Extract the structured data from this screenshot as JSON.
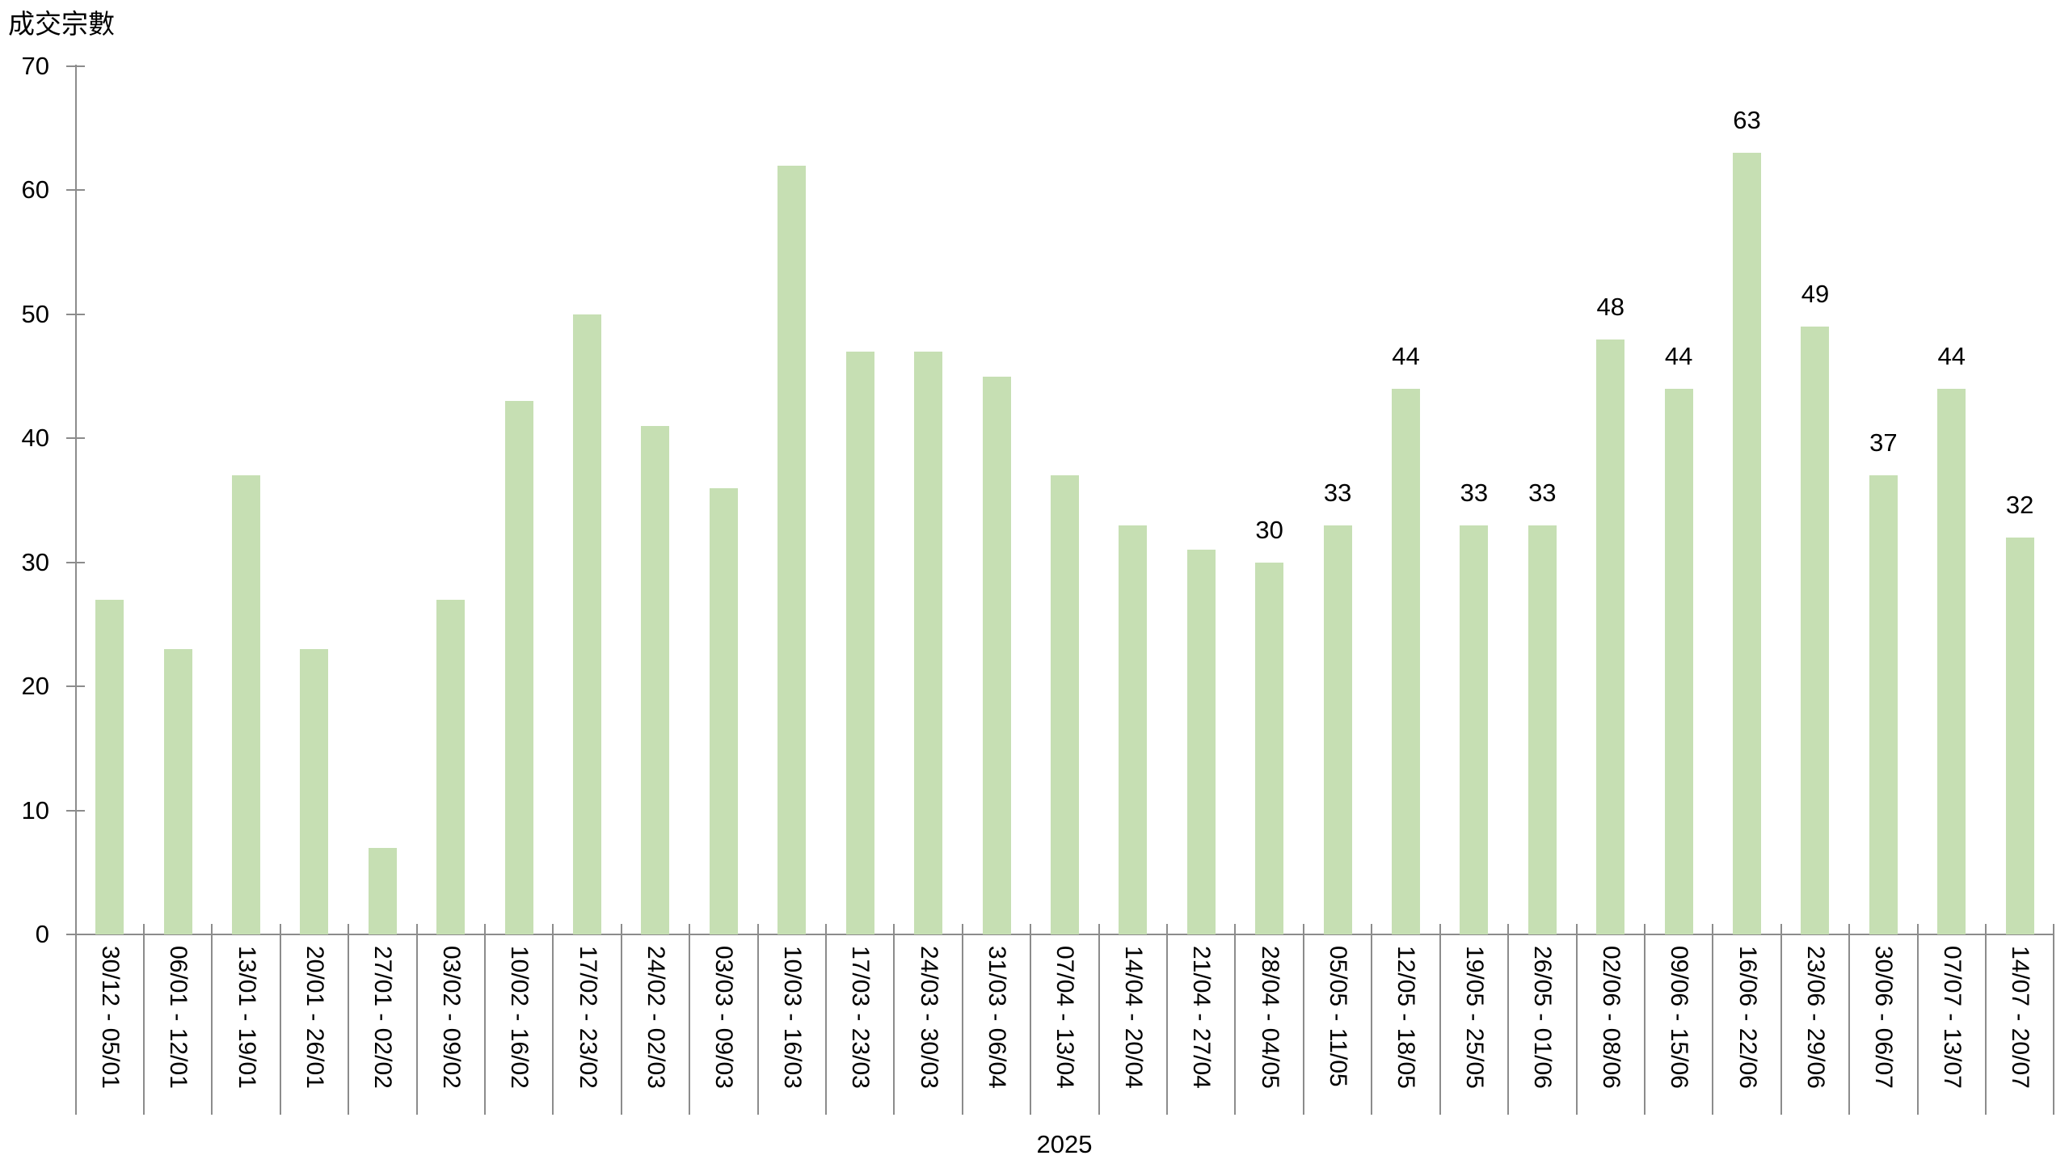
{
  "chart": {
    "title": "成交宗數",
    "year_label": "2025",
    "bar_color": "#c6dfb3",
    "axis_color": "#8c8c8c",
    "text_color": "#000000",
    "background_color": "#ffffff"
  },
  "chart_data": {
    "type": "bar",
    "title": "成交宗數",
    "ylabel": "成交宗數",
    "xlabel": "2025",
    "ylim": [
      0,
      70
    ],
    "yticks": [
      0,
      10,
      20,
      30,
      40,
      50,
      60,
      70
    ],
    "grid": false,
    "legend": false,
    "bar_color": "#c6dfb3",
    "categories": [
      "30/12 - 05/01",
      "06/01 - 12/01",
      "13/01 - 19/01",
      "20/01 - 26/01",
      "27/01 - 02/02",
      "03/02 - 09/02",
      "10/02 - 16/02",
      "17/02 - 23/02",
      "24/02 - 02/03",
      "03/03 - 09/03",
      "10/03 - 16/03",
      "17/03 - 23/03",
      "24/03 - 30/03",
      "31/03 - 06/04",
      "07/04 - 13/04",
      "14/04 - 20/04",
      "21/04 - 27/04",
      "28/04 - 04/05",
      "05/05 - 11/05",
      "12/05 - 18/05",
      "19/05 - 25/05",
      "26/05 - 01/06",
      "02/06 - 08/06",
      "09/06 - 15/06",
      "16/06 - 22/06",
      "23/06 - 29/06",
      "30/06 - 06/07",
      "07/07 - 13/07",
      "14/07 - 20/07"
    ],
    "values": [
      27,
      23,
      37,
      23,
      7,
      27,
      43,
      50,
      41,
      36,
      62,
      47,
      47,
      45,
      37,
      33,
      31,
      30,
      33,
      44,
      33,
      33,
      48,
      44,
      63,
      49,
      37,
      44,
      32
    ],
    "data_labels": [
      "",
      "",
      "",
      "",
      "",
      "",
      "",
      "",
      "",
      "",
      "",
      "",
      "",
      "",
      "",
      "",
      "",
      "30",
      "33",
      "44",
      "33",
      "33",
      "48",
      "44",
      "63",
      "49",
      "37",
      "44",
      "32"
    ]
  }
}
